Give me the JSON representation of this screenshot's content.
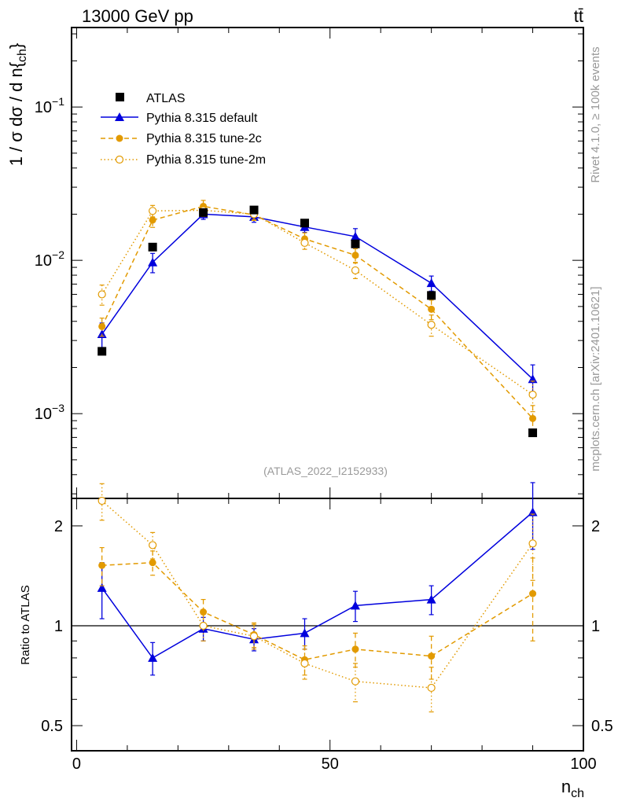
{
  "header": {
    "left": "13000 GeV pp",
    "right": "tt̄"
  },
  "side_labels": {
    "rivet": "Rivet 4.1.0, ≥ 100k events",
    "mcplots": "mcplots.cern.ch [arXiv:2401.10621]"
  },
  "watermark": "(ATLAS_2022_I2152933)",
  "colors": {
    "data": "#000000",
    "default": "#0000dd",
    "tune2c": "#e29a00",
    "tune2m": "#e29a00",
    "ref_line": "#000000",
    "muted_text": "#999999"
  },
  "chart_data": [
    {
      "type": "line",
      "panel": "main",
      "yscale": "log",
      "ylabel": "1 / σ dσ / d n{ch}",
      "xlim": [
        -1,
        100
      ],
      "ylim": [
        0.00028,
        0.33
      ],
      "y_ticks": [
        {
          "value": 0.1,
          "label": "10^-1"
        },
        {
          "value": 0.01,
          "label": "10^-2"
        },
        {
          "value": 0.001,
          "label": "10^-3"
        }
      ],
      "x": [
        5,
        15,
        25,
        35,
        45,
        55,
        70,
        90
      ],
      "legend_position": "top-left",
      "series": [
        {
          "name": "ATLAS",
          "key": "atlas",
          "marker": "square",
          "line": "none",
          "values": [
            0.00255,
            0.0122,
            0.0205,
            0.0213,
            0.0175,
            0.0128,
            0.0059,
            0.00075
          ],
          "errors": [
            0.0001,
            0.0004,
            0.0006,
            0.0006,
            0.0005,
            0.0004,
            0.0002,
            4e-05
          ]
        },
        {
          "name": "Pythia 8.315 default",
          "key": "default",
          "marker": "triangle",
          "line": "solid",
          "values": [
            0.0033,
            0.0097,
            0.02,
            0.0192,
            0.0165,
            0.0143,
            0.0071,
            0.00168
          ],
          "errors": [
            0.0006,
            0.0014,
            0.0015,
            0.0015,
            0.0013,
            0.0018,
            0.0008,
            0.0004
          ]
        },
        {
          "name": "Pythia 8.315 tune-2c",
          "key": "tune2c",
          "marker": "circle",
          "line": "dashed",
          "values": [
            0.0037,
            0.0183,
            0.0225,
            0.0198,
            0.0138,
            0.0108,
            0.0048,
            0.00093
          ],
          "errors": [
            0.0005,
            0.0019,
            0.0021,
            0.0016,
            0.0013,
            0.0011,
            0.0007,
            0.0002
          ]
        },
        {
          "name": "Pythia 8.315 tune-2m",
          "key": "tune2m",
          "marker": "circle-open",
          "line": "dotted",
          "values": [
            0.006,
            0.021,
            0.0212,
            0.02,
            0.013,
            0.0086,
            0.0038,
            0.00133
          ],
          "errors": [
            0.0009,
            0.0018,
            0.0019,
            0.0016,
            0.0012,
            0.001,
            0.0006,
            0.0003
          ]
        }
      ]
    },
    {
      "type": "line",
      "panel": "ratio",
      "yscale": "log",
      "ylabel": "Ratio to ATLAS",
      "xlabel": "n{ch}",
      "xlim": [
        -1,
        100
      ],
      "ylim": [
        0.42,
        2.42
      ],
      "y_ticks": [
        {
          "value": 0.5,
          "label": "0.5"
        },
        {
          "value": 1,
          "label": "1"
        },
        {
          "value": 2,
          "label": "2"
        }
      ],
      "x_ticks": [
        {
          "value": 0,
          "label": "0"
        },
        {
          "value": 50,
          "label": "50"
        },
        {
          "value": 100,
          "label": "100"
        }
      ],
      "reference_line": 1,
      "x": [
        5,
        15,
        25,
        35,
        45,
        55,
        70,
        90
      ],
      "series": [
        {
          "name": "Pythia 8.315 default",
          "key": "default",
          "marker": "triangle",
          "line": "solid",
          "values": [
            1.3,
            0.8,
            0.98,
            0.91,
            0.95,
            1.15,
            1.2,
            2.2
          ],
          "errors": [
            0.25,
            0.09,
            0.08,
            0.07,
            0.1,
            0.12,
            0.12,
            0.5
          ]
        },
        {
          "name": "Pythia 8.315 tune-2c",
          "key": "tune2c",
          "marker": "circle",
          "line": "dashed",
          "values": [
            1.52,
            1.55,
            1.1,
            0.94,
            0.79,
            0.85,
            0.81,
            1.25
          ],
          "errors": [
            0.2,
            0.13,
            0.1,
            0.08,
            0.08,
            0.1,
            0.12,
            0.35
          ]
        },
        {
          "name": "Pythia 8.315 tune-2m",
          "key": "tune2m",
          "marker": "circle-open",
          "line": "dotted",
          "values": [
            2.38,
            1.75,
            1.0,
            0.93,
            0.77,
            0.68,
            0.65,
            1.77
          ],
          "errors": [
            0.3,
            0.16,
            0.1,
            0.08,
            0.08,
            0.09,
            0.1,
            0.4
          ]
        }
      ]
    }
  ]
}
